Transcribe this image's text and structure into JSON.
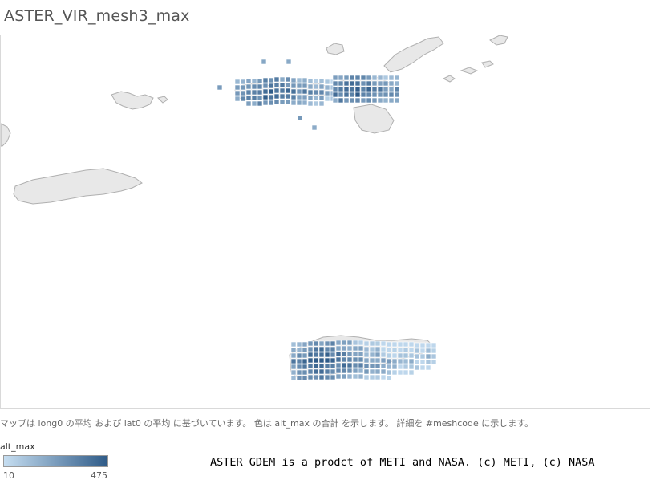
{
  "title": "ASTER_VIR_mesh3_max",
  "caption": "マップは long0 の平均 および lat0 の平均 に基づいています。 色は alt_max の合計 を示します。 詳細を #meshcode に示します。",
  "legend": {
    "title": "alt_max",
    "min": "10",
    "max": "475",
    "color_low": "#c6def1",
    "color_high": "#2f5b88"
  },
  "credit": "ASTER GDEM is a prodct of METI and NASA. (c) METI, (c) NASA",
  "map": {
    "land_color": "#e8e8e8",
    "coast_color": "#b0b0b0",
    "water_color": "#ffffff",
    "layers": [
      "base-land",
      "mesh-cells"
    ]
  }
}
